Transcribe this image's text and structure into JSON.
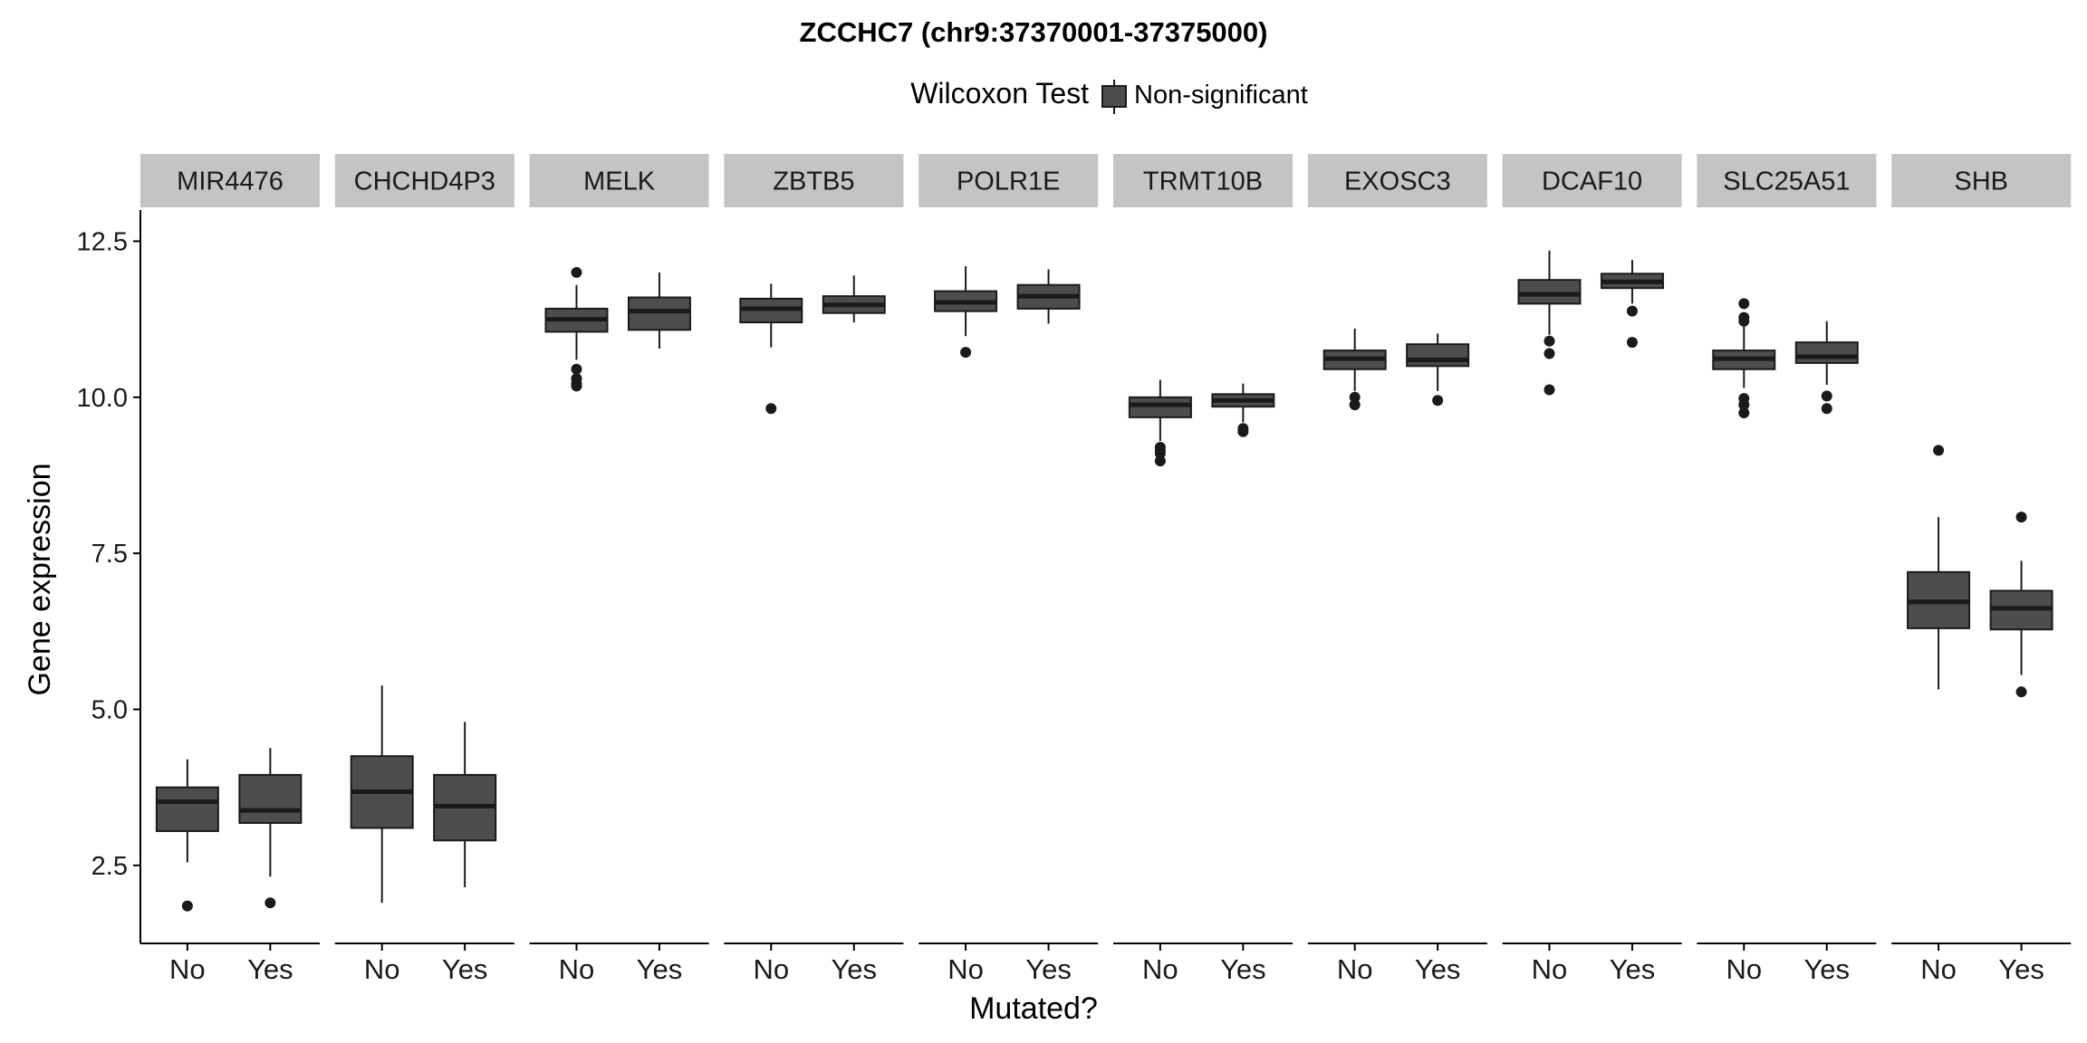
{
  "chart_data": {
    "type": "boxplot",
    "title": "ZCCHC7 (chr9:37370001-37375000)",
    "legend": {
      "title": "Wilcoxon Test",
      "entries": [
        "Non-significant"
      ],
      "position": "top"
    },
    "xlabel": "Mutated?",
    "ylabel": "Gene expression",
    "ylim": [
      1.25,
      13.0
    ],
    "yticks": [
      2.5,
      5.0,
      7.5,
      10.0,
      12.5
    ],
    "ytick_labels": [
      "2.5",
      "5.0",
      "7.5",
      "10.0",
      "12.5"
    ],
    "categories": [
      "No",
      "Yes"
    ],
    "grid": false,
    "colors": {
      "box_fill": "#4d4d4d",
      "box_line": "#1a1a1a",
      "strip": "#c4c4c4",
      "axis": "#000000"
    },
    "panels": [
      {
        "name": "MIR4476",
        "boxes": [
          {
            "category": "No",
            "q1": 3.05,
            "median": 3.52,
            "q3": 3.75,
            "whisker_low": 2.55,
            "whisker_high": 4.2,
            "outliers": [
              1.85
            ]
          },
          {
            "category": "Yes",
            "q1": 3.18,
            "median": 3.38,
            "q3": 3.95,
            "whisker_low": 2.32,
            "whisker_high": 4.38,
            "outliers": [
              1.9
            ]
          }
        ]
      },
      {
        "name": "CHCHD4P3",
        "boxes": [
          {
            "category": "No",
            "q1": 3.1,
            "median": 3.68,
            "q3": 4.25,
            "whisker_low": 1.9,
            "whisker_high": 5.38,
            "outliers": []
          },
          {
            "category": "Yes",
            "q1": 2.9,
            "median": 3.45,
            "q3": 3.95,
            "whisker_low": 2.15,
            "whisker_high": 4.8,
            "outliers": []
          }
        ]
      },
      {
        "name": "MELK",
        "boxes": [
          {
            "category": "No",
            "q1": 11.05,
            "median": 11.25,
            "q3": 11.42,
            "whisker_low": 10.6,
            "whisker_high": 11.8,
            "outliers": [
              12.0,
              10.45,
              10.3,
              10.22,
              10.18
            ]
          },
          {
            "category": "Yes",
            "q1": 11.08,
            "median": 11.38,
            "q3": 11.6,
            "whisker_low": 10.78,
            "whisker_high": 12.0,
            "outliers": []
          }
        ]
      },
      {
        "name": "ZBTB5",
        "boxes": [
          {
            "category": "No",
            "q1": 11.2,
            "median": 11.42,
            "q3": 11.58,
            "whisker_low": 10.8,
            "whisker_high": 11.82,
            "outliers": [
              9.82
            ]
          },
          {
            "category": "Yes",
            "q1": 11.35,
            "median": 11.48,
            "q3": 11.62,
            "whisker_low": 11.2,
            "whisker_high": 11.95,
            "outliers": []
          }
        ]
      },
      {
        "name": "POLR1E",
        "boxes": [
          {
            "category": "No",
            "q1": 11.38,
            "median": 11.52,
            "q3": 11.7,
            "whisker_low": 10.98,
            "whisker_high": 12.1,
            "outliers": [
              10.72
            ]
          },
          {
            "category": "Yes",
            "q1": 11.42,
            "median": 11.62,
            "q3": 11.8,
            "whisker_low": 11.18,
            "whisker_high": 12.05,
            "outliers": []
          }
        ]
      },
      {
        "name": "TRMT10B",
        "boxes": [
          {
            "category": "No",
            "q1": 9.68,
            "median": 9.88,
            "q3": 10.0,
            "whisker_low": 9.3,
            "whisker_high": 10.28,
            "outliers": [
              9.2,
              9.15,
              9.1,
              8.98
            ]
          },
          {
            "category": "Yes",
            "q1": 9.85,
            "median": 9.95,
            "q3": 10.05,
            "whisker_low": 9.6,
            "whisker_high": 10.22,
            "outliers": [
              9.5,
              9.45
            ]
          }
        ]
      },
      {
        "name": "EXOSC3",
        "boxes": [
          {
            "category": "No",
            "q1": 10.45,
            "median": 10.62,
            "q3": 10.75,
            "whisker_low": 10.1,
            "whisker_high": 11.1,
            "outliers": [
              10.0,
              9.88
            ]
          },
          {
            "category": "Yes",
            "q1": 10.5,
            "median": 10.6,
            "q3": 10.85,
            "whisker_low": 10.1,
            "whisker_high": 11.02,
            "outliers": [
              9.95
            ]
          }
        ]
      },
      {
        "name": "DCAF10",
        "boxes": [
          {
            "category": "No",
            "q1": 11.5,
            "median": 11.65,
            "q3": 11.88,
            "whisker_low": 11.0,
            "whisker_high": 12.35,
            "outliers": [
              10.9,
              10.7,
              10.12
            ]
          },
          {
            "category": "Yes",
            "q1": 11.75,
            "median": 11.85,
            "q3": 11.98,
            "whisker_low": 11.5,
            "whisker_high": 12.2,
            "outliers": [
              11.38,
              10.88
            ]
          }
        ]
      },
      {
        "name": "SLC25A51",
        "boxes": [
          {
            "category": "No",
            "q1": 10.45,
            "median": 10.62,
            "q3": 10.75,
            "whisker_low": 10.15,
            "whisker_high": 11.15,
            "outliers": [
              11.5,
              11.28,
              11.22,
              9.98,
              9.88,
              9.75
            ]
          },
          {
            "category": "Yes",
            "q1": 10.55,
            "median": 10.65,
            "q3": 10.88,
            "whisker_low": 10.2,
            "whisker_high": 11.22,
            "outliers": [
              10.02,
              9.82
            ]
          }
        ]
      },
      {
        "name": "SHB",
        "boxes": [
          {
            "category": "No",
            "q1": 6.3,
            "median": 6.72,
            "q3": 7.2,
            "whisker_low": 5.32,
            "whisker_high": 8.08,
            "outliers": [
              9.15
            ]
          },
          {
            "category": "Yes",
            "q1": 6.28,
            "median": 6.62,
            "q3": 6.9,
            "whisker_low": 5.55,
            "whisker_high": 7.38,
            "outliers": [
              8.08,
              5.28
            ]
          }
        ]
      }
    ]
  }
}
